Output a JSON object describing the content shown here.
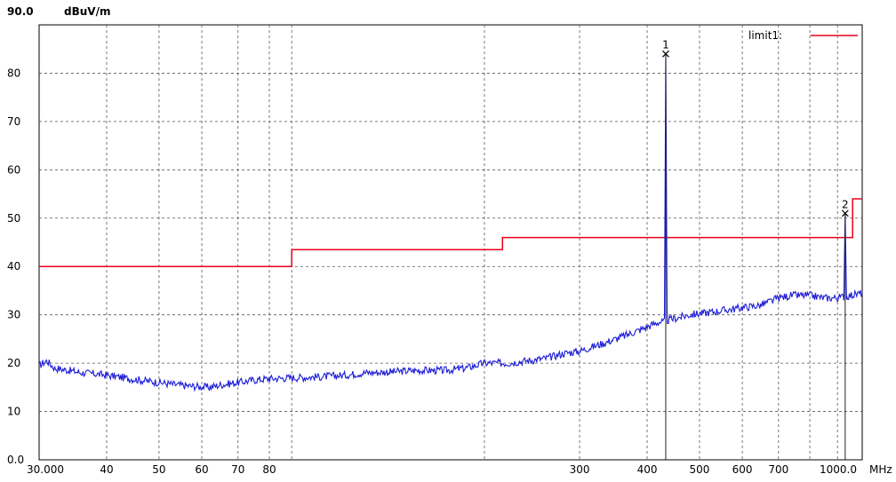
{
  "chart_data": {
    "type": "line",
    "ylabel": "dBuV/m",
    "xlabel": "MHz",
    "x_scale": "log",
    "xlim": [
      30,
      1000
    ],
    "ylim": [
      0,
      90
    ],
    "y_top_label": "90.0",
    "y_ticks": [
      {
        "v": 0,
        "label": "0.0"
      },
      {
        "v": 10,
        "label": "10"
      },
      {
        "v": 20,
        "label": "20"
      },
      {
        "v": 30,
        "label": "30"
      },
      {
        "v": 40,
        "label": "40"
      },
      {
        "v": 50,
        "label": "50"
      },
      {
        "v": 60,
        "label": "60"
      },
      {
        "v": 70,
        "label": "70"
      },
      {
        "v": 80,
        "label": "80"
      }
    ],
    "x_ticks": [
      {
        "v": 30,
        "label": "30.000"
      },
      {
        "v": 40,
        "label": "40"
      },
      {
        "v": 50,
        "label": "50"
      },
      {
        "v": 60,
        "label": "60"
      },
      {
        "v": 70,
        "label": "70"
      },
      {
        "v": 80,
        "label": "80"
      },
      {
        "v": 300,
        "label": "300"
      },
      {
        "v": 400,
        "label": "400"
      },
      {
        "v": 500,
        "label": "500"
      },
      {
        "v": 600,
        "label": "600"
      },
      {
        "v": 700,
        "label": "700"
      },
      {
        "v": 1000,
        "label": "1000.0"
      }
    ],
    "grid_x": [
      40,
      50,
      60,
      70,
      80,
      88,
      200,
      300,
      400,
      500,
      600,
      700,
      800,
      900
    ],
    "grid": true,
    "series": [
      {
        "name": "limit1:",
        "color": "#e8001c",
        "step": true,
        "points": [
          [
            30,
            40
          ],
          [
            88,
            40
          ],
          [
            88,
            43.5
          ],
          [
            216,
            43.5
          ],
          [
            216,
            46
          ],
          [
            960,
            46
          ],
          [
            960,
            54
          ],
          [
            1000,
            54
          ]
        ]
      },
      {
        "name": "",
        "color": "#1c1cd6",
        "points": [
          [
            30,
            19.5
          ],
          [
            31,
            20.5
          ],
          [
            32,
            19
          ],
          [
            34,
            18.5
          ],
          [
            36,
            18
          ],
          [
            38,
            17.8
          ],
          [
            40,
            17.5
          ],
          [
            43,
            17
          ],
          [
            46,
            16.5
          ],
          [
            50,
            16
          ],
          [
            54,
            15.5
          ],
          [
            58,
            15.2
          ],
          [
            62,
            15
          ],
          [
            65,
            15.5
          ],
          [
            70,
            16
          ],
          [
            75,
            16.5
          ],
          [
            80,
            16.8
          ],
          [
            90,
            17
          ],
          [
            100,
            17.2
          ],
          [
            110,
            17.5
          ],
          [
            120,
            18
          ],
          [
            135,
            18.2
          ],
          [
            150,
            18.5
          ],
          [
            170,
            18.5
          ],
          [
            185,
            19
          ],
          [
            200,
            20
          ],
          [
            220,
            20
          ],
          [
            240,
            20.5
          ],
          [
            260,
            21
          ],
          [
            280,
            22
          ],
          [
            300,
            22.5
          ],
          [
            330,
            24
          ],
          [
            360,
            25.5
          ],
          [
            390,
            27
          ],
          [
            420,
            28.5
          ],
          [
            430,
            28.5
          ],
          [
            440,
            29
          ],
          [
            460,
            29.5
          ],
          [
            480,
            30
          ],
          [
            520,
            30.5
          ],
          [
            560,
            31
          ],
          [
            600,
            31.5
          ],
          [
            650,
            32
          ],
          [
            700,
            33.5
          ],
          [
            740,
            34
          ],
          [
            800,
            34
          ],
          [
            850,
            33.5
          ],
          [
            900,
            33.5
          ],
          [
            950,
            34
          ],
          [
            1000,
            34.5
          ]
        ]
      }
    ],
    "peaks": [
      {
        "label": "1",
        "x": 433,
        "y": 84
      },
      {
        "label": "2",
        "x": 930,
        "y": 51
      }
    ],
    "noise_seed": 17
  }
}
